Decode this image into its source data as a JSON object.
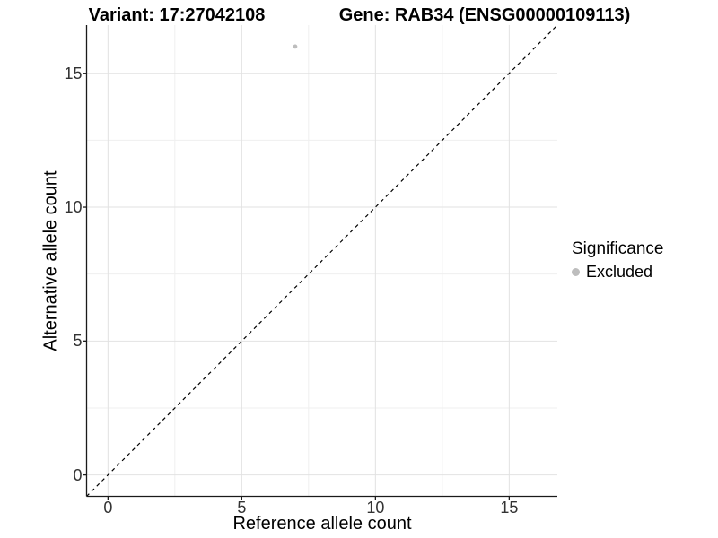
{
  "titles": {
    "variant": "Variant: 17:27042108",
    "gene": "Gene: RAB34 (ENSG00000109113)"
  },
  "axes": {
    "x_label": "Reference allele count",
    "y_label": "Alternative allele count",
    "x_tick_labels": [
      "0",
      "5",
      "10",
      "15"
    ],
    "y_tick_labels": [
      "0",
      "5",
      "10",
      "15"
    ]
  },
  "legend": {
    "title": "Significance",
    "items": [
      {
        "label": "Excluded",
        "color": "#bdbdbd",
        "key": "dot-icon"
      }
    ]
  },
  "colors": {
    "background": "#ffffff",
    "grid_major": "#e2e2e2",
    "grid_minor": "#efefef",
    "axis_line": "#1a1a1a",
    "tick_mark": "#1a1a1a",
    "tick_label": "#333333",
    "reference_line": "#000000",
    "point": "#bdbdbd"
  },
  "chart_data": {
    "type": "scatter",
    "title_left": "Variant: 17:27042108",
    "title_right": "Gene: RAB34 (ENSG00000109113)",
    "xlabel": "Reference allele count",
    "ylabel": "Alternative allele count",
    "xlim": [
      -0.8,
      16.8
    ],
    "ylim": [
      -0.8,
      16.8
    ],
    "x_major_ticks": [
      0,
      5,
      10,
      15
    ],
    "y_major_ticks": [
      0,
      5,
      10,
      15
    ],
    "x_minor_ticks": [
      2.5,
      7.5,
      12.5
    ],
    "y_minor_ticks": [
      2.5,
      7.5,
      12.5
    ],
    "grid": "major+minor",
    "legend_position": "right",
    "series": [
      {
        "name": "Excluded",
        "color": "#bdbdbd",
        "points": [
          {
            "x": 7,
            "y": 16
          }
        ]
      }
    ],
    "reference_line": {
      "type": "identity",
      "slope": 1,
      "intercept": 0,
      "style": "dashed",
      "color": "#000000"
    }
  }
}
